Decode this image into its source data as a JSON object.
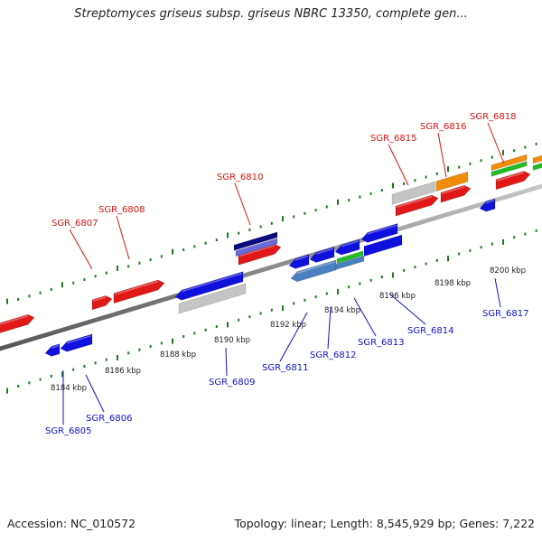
{
  "title": "Streptomyces griseus subsp. griseus NBRC 13350, complete gen...",
  "footer": {
    "accession": "Accession: NC_010572",
    "topology": "Topology: linear; Length: 8,545,929 bp; Genes: 7,222"
  },
  "colors": {
    "forward_label": "#dd1111",
    "reverse_label": "#1111cc",
    "tick": "#1e7a1e",
    "backbone": "#8a8a8a"
  },
  "ruler_labels": [
    "8184 kbp",
    "8186 kbp",
    "8188 kbp",
    "8190 kbp",
    "8192 kbp",
    "8194 kbp",
    "8196 kbp",
    "8198 kbp",
    "8200 kbp"
  ],
  "forward_genes": [
    "SGR_6807",
    "SGR_6808",
    "SGR_6810",
    "SGR_6815",
    "SGR_6816",
    "SGR_6818"
  ],
  "reverse_genes": [
    "SGR_6805",
    "SGR_6806",
    "SGR_6809",
    "SGR_6811",
    "SGR_6812",
    "SGR_6813",
    "SGR_6814",
    "SGR_6817"
  ]
}
